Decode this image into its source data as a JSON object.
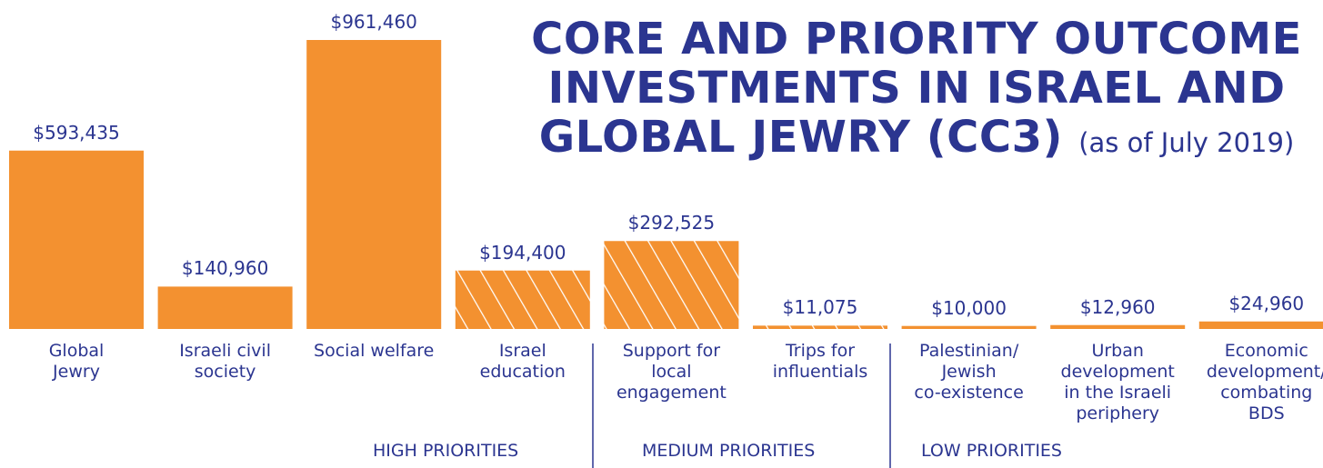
{
  "chart_data": {
    "type": "bar",
    "title": "CORE AND PRIORITY OUTCOME\nINVESTMENTS IN ISRAEL AND\nGLOBAL JEWRY (CC3)",
    "subtitle": "(as of July 2019)",
    "categories": [
      "Global\nJewry",
      "Israeli civil\nsociety",
      "Social welfare",
      "Israel\neducation",
      "Support for\nlocal\nengagement",
      "Trips for\ninfluentials",
      "Palestinian/\nJewish\nco-existence",
      "Urban\ndevelopment\nin the Israeli\nperiphery",
      "Economic\ndevelopment/\ncombating\nBDS"
    ],
    "values": [
      593435,
      140960,
      961460,
      194400,
      292525,
      11075,
      10000,
      12960,
      24960
    ],
    "value_labels": [
      "$593,435",
      "$140,960",
      "$961,460",
      "$194,400",
      "$292,525",
      "$11,075",
      "$10,000",
      "$12,960",
      "$24,960"
    ],
    "hatch": [
      false,
      false,
      false,
      true,
      true,
      true,
      false,
      false,
      false
    ],
    "color": "#f39130",
    "groups": [
      "HIGH PRIORITIES",
      "MEDIUM PRIORITIES",
      "LOW PRIORITIES"
    ]
  }
}
